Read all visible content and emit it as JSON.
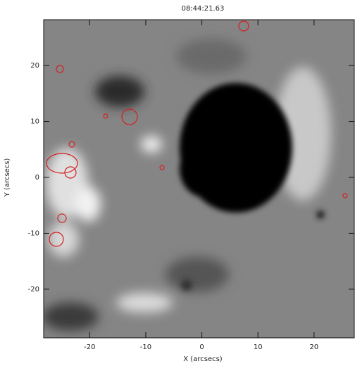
{
  "chart_data": {
    "type": "image",
    "title": "08:44:21.63",
    "x_label": "X (arcsecs)",
    "y_label": "Y (arcsecs)",
    "xlim": [
      -28.2,
      27.3
    ],
    "ylim": [
      -28.7,
      28.2
    ],
    "xticks": [
      -20,
      -10,
      0,
      10,
      20
    ],
    "yticks": [
      20,
      10,
      0,
      -10,
      -20
    ]
  }
}
